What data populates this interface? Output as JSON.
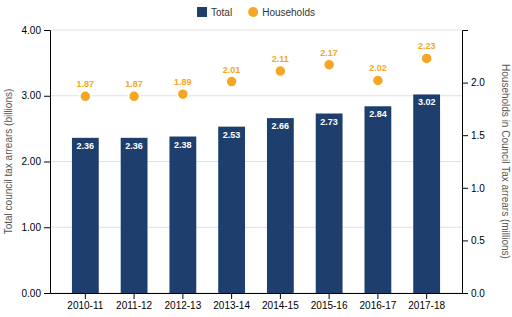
{
  "chart_data": {
    "type": "bar",
    "categories": [
      "2010-11",
      "2011-12",
      "2012-13",
      "2013-14",
      "2014-15",
      "2015-16",
      "2016-17",
      "2017-18"
    ],
    "series": [
      {
        "name": "Total",
        "type": "bar",
        "color": "#1e3f6e",
        "values": [
          2.36,
          2.36,
          2.38,
          2.53,
          2.66,
          2.73,
          2.84,
          3.02
        ]
      },
      {
        "name": "Households",
        "type": "scatter",
        "marker": "circle",
        "color": "#f5a623",
        "axis": "y2",
        "values": [
          1.87,
          1.87,
          1.89,
          2.01,
          2.11,
          2.17,
          2.02,
          2.23
        ]
      }
    ],
    "ylabel": "Total council tax arrears (billions)",
    "y2label": "Households in Council Tax arrears (millions)",
    "ylim": [
      0,
      4.0
    ],
    "yticks": [
      {
        "value": 0.0,
        "label": "0.00"
      },
      {
        "value": 1.0,
        "label": "1.00"
      },
      {
        "value": 2.0,
        "label": "2.00"
      },
      {
        "value": 3.0,
        "label": "3.00"
      },
      {
        "value": 4.0,
        "label": "4.00"
      }
    ],
    "y2lim": [
      0,
      2.5
    ],
    "y2ticks": [
      {
        "value": 0.0,
        "label": "0.0"
      },
      0.5,
      {
        "value": 1.0,
        "label": "1.0"
      },
      1.5,
      {
        "value": 2.0,
        "label": "2.0"
      }
    ],
    "grid": true,
    "data_labels": true,
    "legend": "top"
  }
}
